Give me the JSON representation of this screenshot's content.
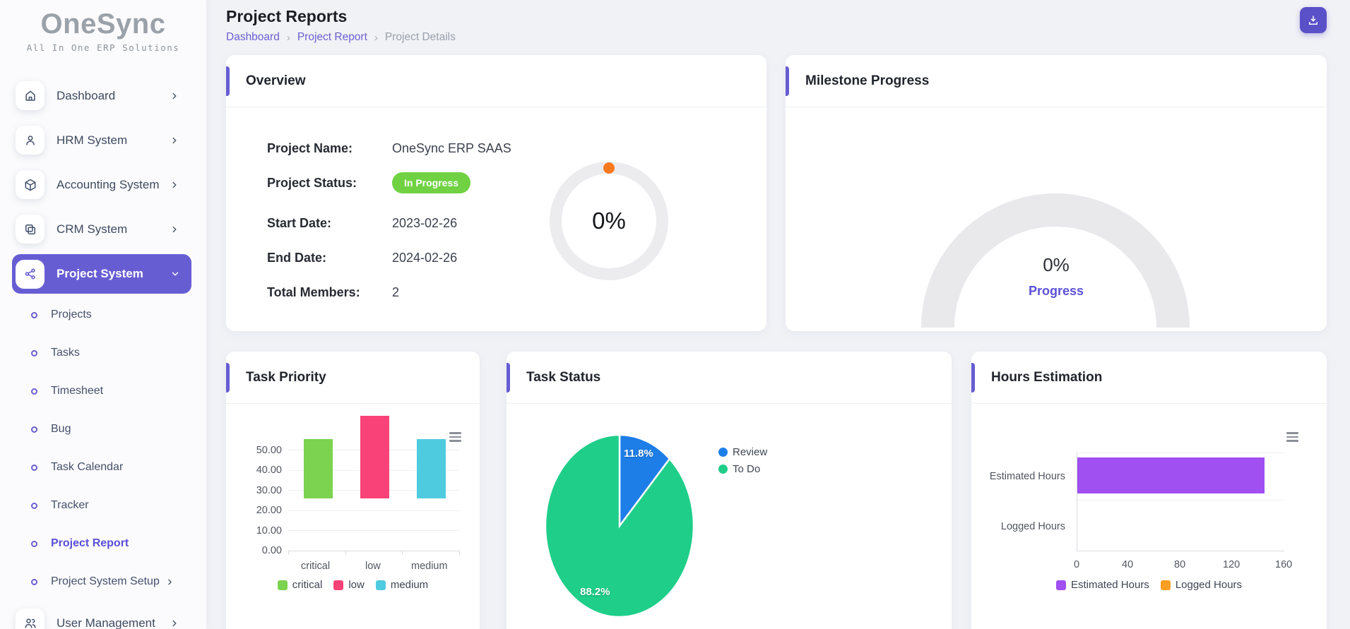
{
  "brand": {
    "name": "OneSync",
    "tagline": "All In One ERP Solutions"
  },
  "colors": {
    "accent": "#675dd3",
    "badge_green": "#70d243",
    "gauge_gray": "#e9e9ec",
    "marker_orange": "#fb7a1d"
  },
  "sidebar": {
    "items": [
      {
        "label": "Dashboard",
        "icon": "home-icon"
      },
      {
        "label": "HRM System",
        "icon": "user-icon"
      },
      {
        "label": "Accounting System",
        "icon": "cube-icon"
      },
      {
        "label": "CRM System",
        "icon": "frame-icon"
      },
      {
        "label": "Project System",
        "icon": "share-icon",
        "active": true
      }
    ],
    "submenu": [
      {
        "label": "Projects"
      },
      {
        "label": "Tasks"
      },
      {
        "label": "Timesheet"
      },
      {
        "label": "Bug"
      },
      {
        "label": "Task Calendar"
      },
      {
        "label": "Tracker"
      },
      {
        "label": "Project Report",
        "active": true
      },
      {
        "label": "Project System Setup",
        "chevron": "right"
      }
    ],
    "footer_item": {
      "label": "User Management",
      "icon": "users-icon"
    }
  },
  "header": {
    "title": "Project Reports",
    "breadcrumb": [
      {
        "label": "Dashboard"
      },
      {
        "label": "Project Report"
      },
      {
        "label": "Project Details"
      }
    ],
    "separator": "›"
  },
  "overview": {
    "title": "Overview",
    "fields": [
      {
        "label": "Project Name:",
        "value": "OneSync ERP SAAS"
      },
      {
        "label": "Project Status:",
        "value": "In Progress"
      },
      {
        "label": "Start Date:",
        "value": "2023-02-26"
      },
      {
        "label": "End Date:",
        "value": "2024-02-26"
      },
      {
        "label": "Total Members:",
        "value": "2"
      }
    ],
    "progress_percent": "0%"
  },
  "milestone": {
    "title": "Milestone Progress",
    "percent": "0%",
    "caption": "Progress"
  },
  "chart_data": [
    {
      "id": "task_priority",
      "type": "bar",
      "title": "Task Priority",
      "categories": [
        "critical",
        "low",
        "medium"
      ],
      "values": [
        29.41,
        41.18,
        29.41
      ],
      "colors": [
        "#7bd34f",
        "#f94277",
        "#4fcbe0"
      ],
      "ylim": [
        0,
        50
      ],
      "yticks": [
        "50.00",
        "40.00",
        "30.00",
        "20.00",
        "10.00",
        "0.00"
      ],
      "legend": [
        "critical",
        "low",
        "medium"
      ],
      "legend_position": "bottom",
      "grid": true
    },
    {
      "id": "task_status",
      "type": "pie",
      "title": "Task Status",
      "labels": [
        "Review",
        "To Do"
      ],
      "values": [
        11.8,
        88.2
      ],
      "value_labels": [
        "11.8%",
        "88.2%"
      ],
      "colors": [
        "#1e7ee8",
        "#1fce89"
      ],
      "legend_position": "right"
    },
    {
      "id": "hours_estimation",
      "type": "bar-horizontal",
      "title": "Hours Estimation",
      "categories": [
        "Estimated Hours",
        "Logged Hours"
      ],
      "values": [
        144,
        0
      ],
      "colors": [
        "#a04ff1",
        "#fb9e22"
      ],
      "xlim": [
        0,
        160
      ],
      "xticks": [
        "0",
        "40",
        "80",
        "120",
        "160"
      ],
      "legend": [
        "Estimated Hours",
        "Logged Hours"
      ],
      "legend_position": "bottom",
      "grid": true
    }
  ]
}
